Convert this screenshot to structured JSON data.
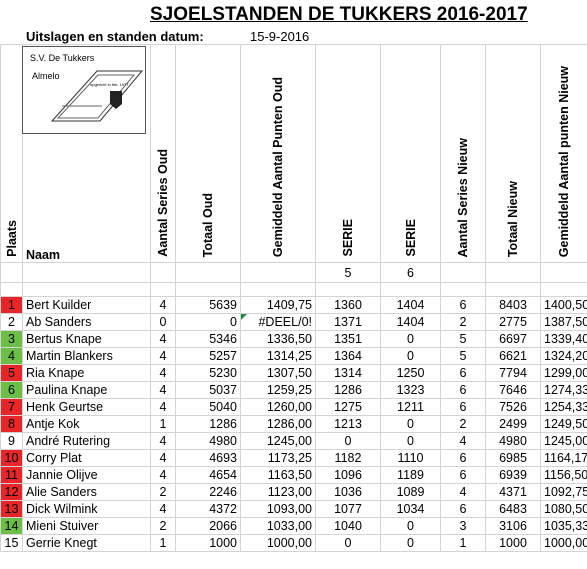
{
  "header": {
    "title": "SJOELSTANDEN DE TUKKERS 2016-2017",
    "subtitle": "Uitslagen en standen datum:",
    "date": "15-9-2016"
  },
  "logo": {
    "name": "S.V. De Tukkers",
    "city": "Almelo",
    "founded": "opgericht in feb. 1977"
  },
  "table": {
    "columns": [
      "Plaats",
      "Naam",
      "Aantal Series Oud",
      "Totaal Oud",
      "Gemiddeld Aantal Punten Oud",
      "SERIE",
      "SERIE",
      "Aantal Series Nieuw",
      "Totaal Nieuw",
      "Gemiddeld Aantal punten Nieuw"
    ],
    "serie_numbers": [
      "5",
      "6"
    ],
    "rows": [
      {
        "color": "#e8262a",
        "cells": [
          "1",
          "Bert Kuilder",
          "4",
          "5639",
          "1409,75",
          "1360",
          "1404",
          "6",
          "8403",
          "1400,50"
        ]
      },
      {
        "cells": [
          "2",
          "Ab Sanders",
          "0",
          "0",
          "#DEEL/0!",
          "1371",
          "1404",
          "2",
          "2775",
          "1387,50"
        ]
      },
      {
        "color": "#6cbe45",
        "cells": [
          "3",
          "Bertus Knape",
          "4",
          "5346",
          "1336,50",
          "1351",
          "0",
          "5",
          "6697",
          "1339,40"
        ]
      },
      {
        "color": "#6cbe45",
        "cells": [
          "4",
          "Martin Blankers",
          "4",
          "5257",
          "1314,25",
          "1364",
          "0",
          "5",
          "6621",
          "1324,20"
        ]
      },
      {
        "color": "#e8262a",
        "cells": [
          "5",
          "Ria Knape",
          "4",
          "5230",
          "1307,50",
          "1314",
          "1250",
          "6",
          "7794",
          "1299,00"
        ]
      },
      {
        "color": "#6cbe45",
        "cells": [
          "6",
          "Paulina Knape",
          "4",
          "5037",
          "1259,25",
          "1286",
          "1323",
          "6",
          "7646",
          "1274,33"
        ]
      },
      {
        "color": "#e8262a",
        "cells": [
          "7",
          "Henk Geurtse",
          "4",
          "5040",
          "1260,00",
          "1275",
          "1211",
          "6",
          "7526",
          "1254,33"
        ]
      },
      {
        "color": "#e8262a",
        "cells": [
          "8",
          "Antje Kok",
          "1",
          "1286",
          "1286,00",
          "1213",
          "0",
          "2",
          "2499",
          "1249,50"
        ]
      },
      {
        "cells": [
          "9",
          "André Rutering",
          "4",
          "4980",
          "1245,00",
          "0",
          "0",
          "4",
          "4980",
          "1245,00"
        ]
      },
      {
        "color": "#e8262a",
        "cells": [
          "10",
          "Corry Plat",
          "4",
          "4693",
          "1173,25",
          "1182",
          "1110",
          "6",
          "6985",
          "1164,17"
        ]
      },
      {
        "color": "#e8262a",
        "cells": [
          "11",
          "Jannie Olijve",
          "4",
          "4654",
          "1163,50",
          "1096",
          "1189",
          "6",
          "6939",
          "1156,50"
        ]
      },
      {
        "color": "#e8262a",
        "cells": [
          "12",
          "Alie Sanders",
          "2",
          "2246",
          "1123,00",
          "1036",
          "1089",
          "4",
          "4371",
          "1092,75"
        ]
      },
      {
        "color": "#e8262a",
        "cells": [
          "13",
          "Dick Wilmink",
          "4",
          "4372",
          "1093,00",
          "1077",
          "1034",
          "6",
          "6483",
          "1080,50"
        ]
      },
      {
        "color": "#6cbe45",
        "cells": [
          "14",
          "Mieni Stuiver",
          "2",
          "2066",
          "1033,00",
          "1040",
          "0",
          "3",
          "3106",
          "1035,33"
        ]
      },
      {
        "cells": [
          "15",
          "Gerrie Knegt",
          "1",
          "1000",
          "1000,00",
          "0",
          "0",
          "1",
          "1000",
          "1000,00"
        ]
      }
    ]
  }
}
